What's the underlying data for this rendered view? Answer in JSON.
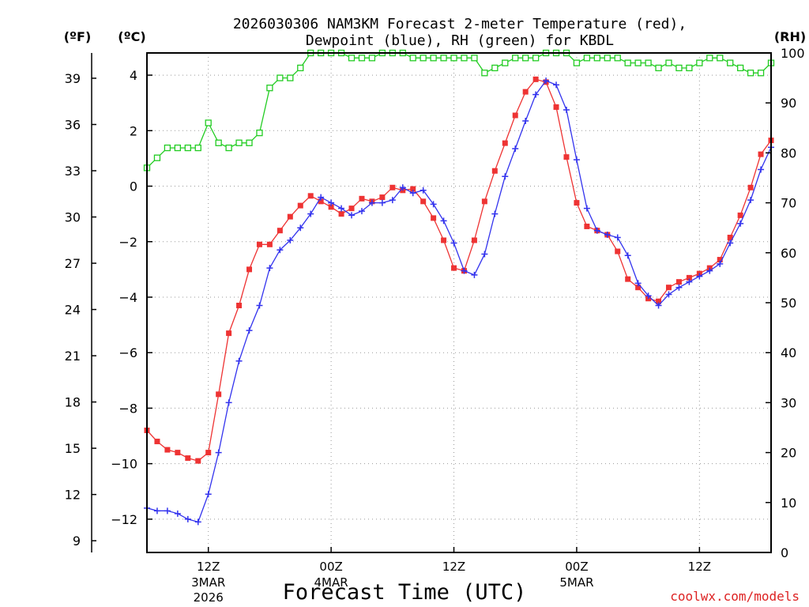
{
  "chart_data": {
    "type": "line",
    "title_line1": "2026030306 NAM3KM Forecast 2-meter Temperature (red),",
    "title_line2": "Dewpoint (blue), RH (green) for KBDL",
    "xlabel": "Forecast Time (UTC)",
    "watermark": "coolwx.com/models",
    "left_unit_f": "(ºF)",
    "left_unit_c": "(ºC)",
    "right_unit": "(RH)",
    "x_range_hours": [
      6,
      67
    ],
    "ylim_c": [
      -13.2,
      4.8
    ],
    "ylim_rh": [
      0,
      100
    ],
    "grid": true,
    "x_ticks": [
      {
        "hour": 12,
        "line1": "12Z",
        "line2": "3MAR",
        "line3": "2026"
      },
      {
        "hour": 24,
        "line1": "00Z",
        "line2": "4MAR",
        "line3": ""
      },
      {
        "hour": 36,
        "line1": "12Z",
        "line2": "",
        "line3": ""
      },
      {
        "hour": 48,
        "line1": "00Z",
        "line2": "5MAR",
        "line3": ""
      },
      {
        "hour": 60,
        "line1": "12Z",
        "line2": "",
        "line3": ""
      }
    ],
    "c_ticks": [
      4,
      2,
      0,
      -2,
      -4,
      -6,
      -8,
      -10,
      -12
    ],
    "c_tick_labels": [
      "4",
      "2",
      "0",
      "−2",
      "−4",
      "−6",
      "−8",
      "−10",
      "−12"
    ],
    "f_ticks": [
      39,
      36,
      33,
      30,
      27,
      24,
      21,
      18,
      15,
      12,
      9
    ],
    "rh_ticks": [
      100,
      90,
      80,
      70,
      60,
      50,
      40,
      30,
      20,
      10,
      0
    ],
    "hours": [
      6,
      7,
      8,
      9,
      10,
      11,
      12,
      13,
      14,
      15,
      16,
      17,
      18,
      19,
      20,
      21,
      22,
      23,
      24,
      25,
      26,
      27,
      28,
      29,
      30,
      31,
      32,
      33,
      34,
      35,
      36,
      37,
      38,
      39,
      40,
      41,
      42,
      43,
      44,
      45,
      46,
      47,
      48,
      49,
      50,
      51,
      52,
      53,
      54,
      55,
      56,
      57,
      58,
      59,
      60,
      61,
      62,
      63,
      64,
      65,
      66,
      67
    ],
    "series": [
      {
        "name": "2-meter Temperature",
        "unit": "C",
        "color": "#ee3333",
        "marker": "filled-square",
        "values": [
          -8.8,
          -9.2,
          -9.5,
          -9.6,
          -9.8,
          -9.9,
          -9.6,
          -7.5,
          -5.3,
          -4.3,
          -3.0,
          -2.1,
          -2.1,
          -1.6,
          -1.1,
          -0.7,
          -0.35,
          -0.55,
          -0.75,
          -1.0,
          -0.8,
          -0.45,
          -0.55,
          -0.4,
          -0.05,
          -0.15,
          -0.1,
          -0.55,
          -1.15,
          -1.95,
          -2.95,
          -3.05,
          -1.95,
          -0.55,
          0.55,
          1.55,
          2.55,
          3.4,
          3.85,
          3.75,
          2.85,
          1.05,
          -0.6,
          -1.45,
          -1.6,
          -1.75,
          -2.35,
          -3.35,
          -3.65,
          -4.05,
          -4.15,
          -3.65,
          -3.45,
          -3.3,
          -3.15,
          -2.95,
          -2.65,
          -1.85,
          -1.05,
          -0.05,
          1.15,
          1.65
        ]
      },
      {
        "name": "Dewpoint",
        "unit": "C",
        "color": "#3333ee",
        "marker": "plus",
        "values": [
          -11.6,
          -11.7,
          -11.7,
          -11.8,
          -12.0,
          -12.1,
          -11.1,
          -9.6,
          -7.8,
          -6.3,
          -5.2,
          -4.3,
          -2.95,
          -2.3,
          -1.95,
          -1.5,
          -1.0,
          -0.4,
          -0.6,
          -0.8,
          -1.05,
          -0.9,
          -0.6,
          -0.6,
          -0.5,
          -0.05,
          -0.25,
          -0.15,
          -0.65,
          -1.25,
          -2.05,
          -3.05,
          -3.2,
          -2.45,
          -1.0,
          0.35,
          1.35,
          2.35,
          3.3,
          3.8,
          3.65,
          2.75,
          0.95,
          -0.8,
          -1.6,
          -1.75,
          -1.85,
          -2.5,
          -3.5,
          -3.95,
          -4.3,
          -3.9,
          -3.65,
          -3.45,
          -3.25,
          -3.05,
          -2.8,
          -2.05,
          -1.35,
          -0.5,
          0.6,
          1.4
        ]
      },
      {
        "name": "RH",
        "unit": "%",
        "color": "#22cc22",
        "marker": "open-square",
        "values": [
          77,
          79,
          81,
          81,
          81,
          81,
          86,
          82,
          81,
          82,
          82,
          84,
          93,
          95,
          95,
          97,
          100,
          100,
          100,
          100,
          99,
          99,
          99,
          100,
          100,
          100,
          99,
          99,
          99,
          99,
          99,
          99,
          99,
          96,
          97,
          98,
          99,
          99,
          99,
          100,
          100,
          100,
          98,
          99,
          99,
          99,
          99,
          98,
          98,
          98,
          97,
          98,
          97,
          97,
          98,
          99,
          99,
          98,
          97,
          96,
          96,
          98
        ]
      }
    ]
  }
}
